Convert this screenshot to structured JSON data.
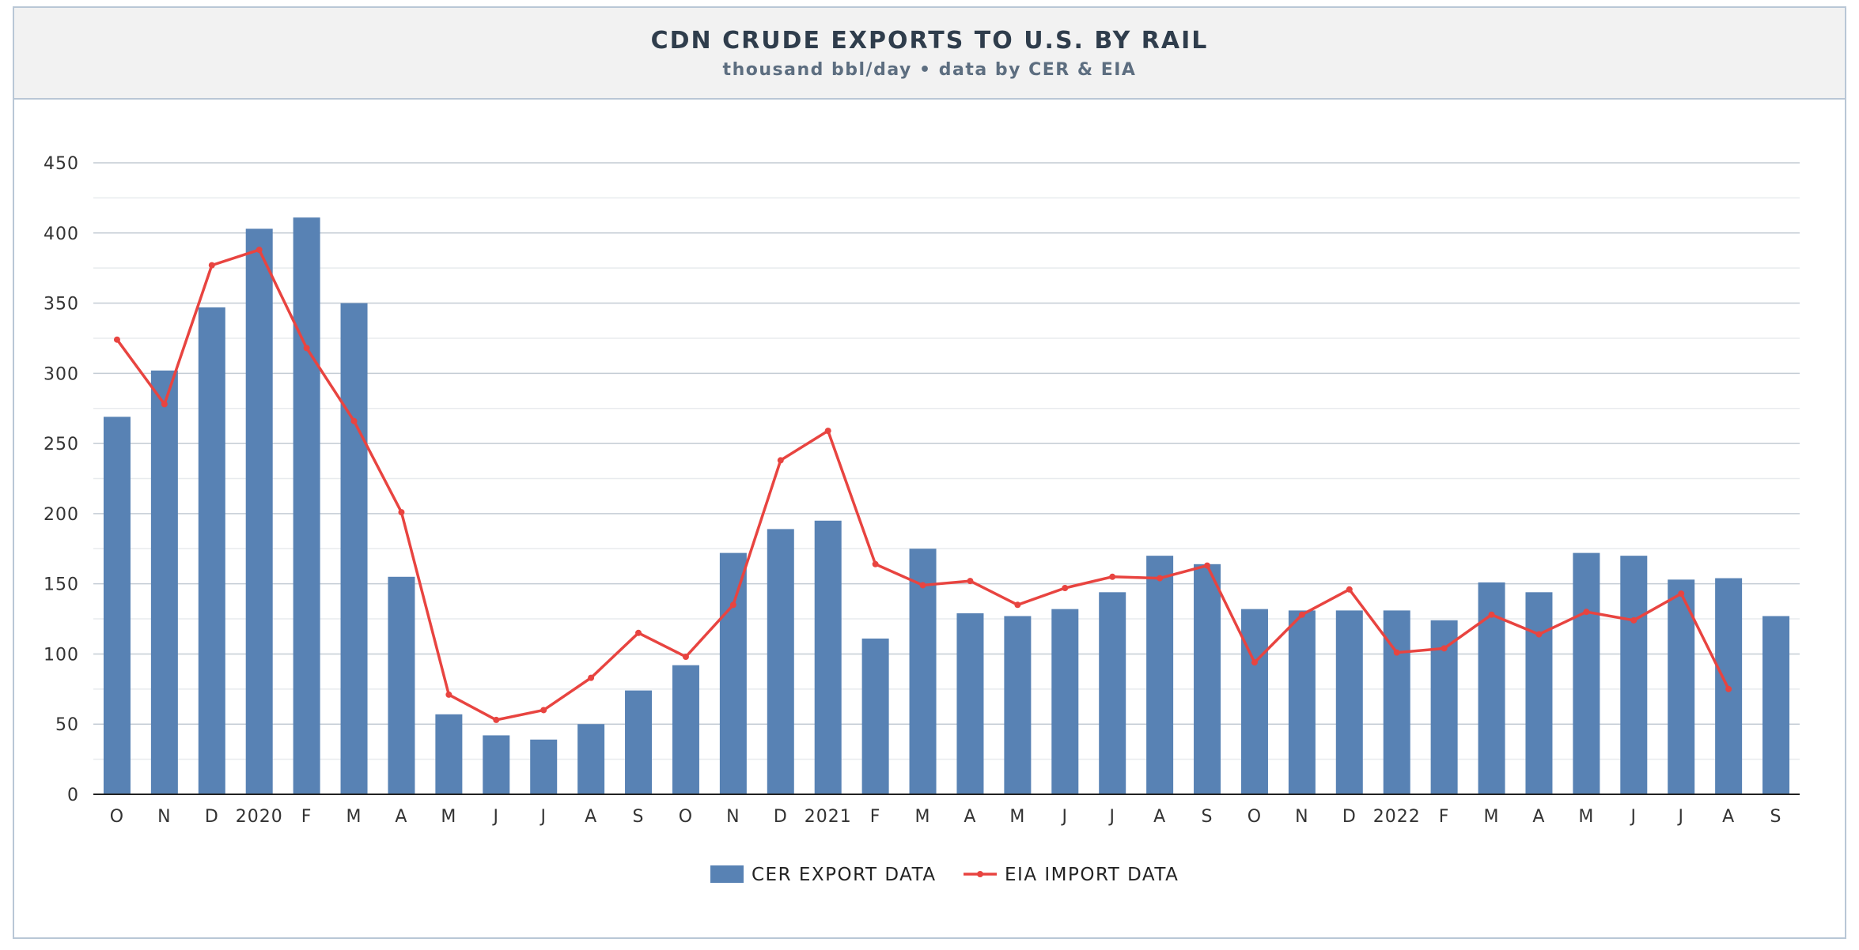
{
  "header": {
    "title": "CDN CRUDE EXPORTS TO U.S. BY RAIL",
    "subtitle": "thousand bbl/day • data by CER & EIA"
  },
  "colors": {
    "bar": "#5882b4",
    "line": "#e84440",
    "grid": "#c4ccd4",
    "minor_grid": "#e8ebee",
    "axis": "#222222",
    "tick_text": "#333333"
  },
  "chart_data": {
    "type": "bar",
    "title": "CDN CRUDE EXPORTS TO U.S. BY RAIL",
    "subtitle": "thousand bbl/day • data by CER & EIA",
    "xlabel": "",
    "ylabel": "",
    "ylim": [
      0,
      450
    ],
    "y_ticks": [
      0,
      50,
      100,
      150,
      200,
      250,
      300,
      350,
      400,
      450
    ],
    "grid": true,
    "legend_position": "bottom-center",
    "categories": [
      "O",
      "N",
      "D",
      "2020",
      "F",
      "M",
      "A",
      "M",
      "J",
      "J",
      "A",
      "S",
      "O",
      "N",
      "D",
      "2021",
      "F",
      "M",
      "A",
      "M",
      "J",
      "J",
      "A",
      "S",
      "O",
      "N",
      "D",
      "2022",
      "F",
      "M",
      "A",
      "M",
      "J",
      "J",
      "A",
      "S"
    ],
    "series": [
      {
        "name": "CER EXPORT DATA",
        "type": "bar",
        "values": [
          269,
          302,
          347,
          403,
          411,
          350,
          155,
          57,
          42,
          39,
          50,
          74,
          92,
          172,
          189,
          195,
          111,
          175,
          129,
          127,
          132,
          144,
          170,
          164,
          132,
          131,
          131,
          131,
          124,
          151,
          144,
          172,
          170,
          153,
          154,
          127
        ]
      },
      {
        "name": "EIA IMPORT DATA",
        "type": "line",
        "values": [
          324,
          278,
          377,
          388,
          318,
          266,
          201,
          71,
          53,
          60,
          83,
          115,
          98,
          135,
          238,
          259,
          164,
          149,
          152,
          135,
          147,
          155,
          154,
          163,
          94,
          128,
          146,
          101,
          104,
          128,
          114,
          130,
          124,
          143,
          75,
          null
        ]
      }
    ]
  }
}
